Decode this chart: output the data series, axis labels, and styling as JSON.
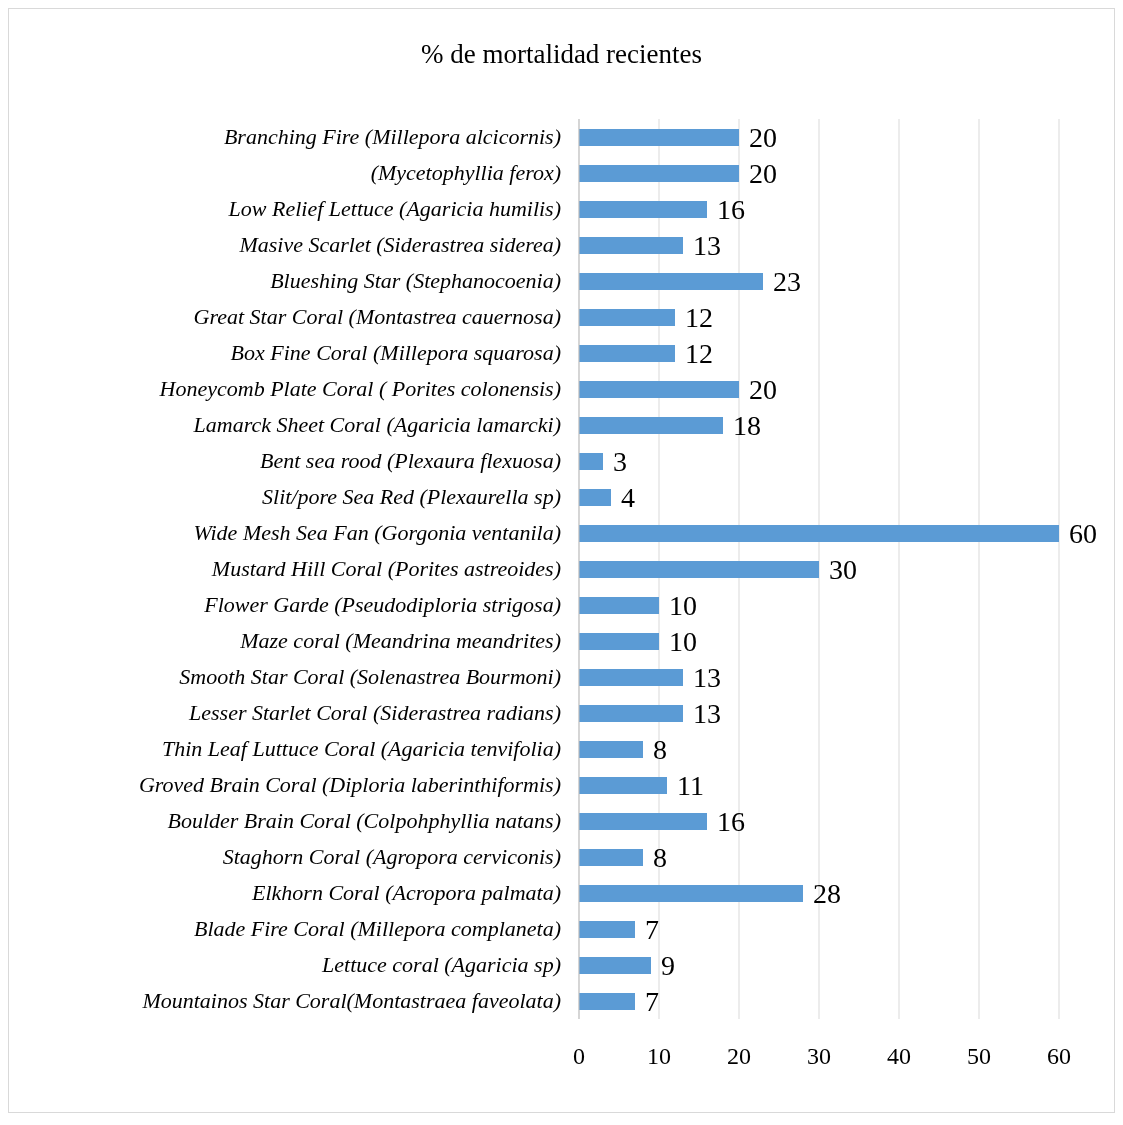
{
  "chart_data": {
    "type": "bar",
    "orientation": "horizontal",
    "title": "% de mortalidad recientes",
    "categories": [
      "Branching Fire (Millepora alcicornis)",
      "(Mycetophyllia ferox)",
      "Low Relief Lettuce (Agaricia humilis)",
      "Masive Scarlet (Siderastrea siderea)",
      "Blueshing Star (Stephanocoenia)",
      "Great Star Coral (Montastrea cauernosa)",
      "Box Fine Coral (Millepora squarosa)",
      "Honeycomb Plate Coral ( Porites colonensis)",
      "Lamarck Sheet Coral (Agaricia lamarcki)",
      "Bent sea rood (Plexaura flexuosa)",
      "Slit/pore Sea Red (Plexaurella sp)",
      "Wide Mesh Sea Fan (Gorgonia ventanila)",
      "Mustard Hill Coral (Porites astreoides)",
      "Flower Garde (Pseudodiploria strigosa)",
      "Maze coral (Meandrina meandrites)",
      "Smooth Star Coral (Solenastrea Bourmoni)",
      "Lesser Starlet Coral (Siderastrea radians)",
      "Thin Leaf Luttuce Coral (Agaricia tenvifolia)",
      "Groved Brain Coral (Diploria laberinthiformis)",
      "Boulder Brain Coral (Colpohphyllia natans)",
      "Staghorn Coral (Agropora cerviconis)",
      "Elkhorn Coral (Acropora palmata)",
      "Blade Fire Coral (Millepora complaneta)",
      "Lettuce coral (Agaricia sp)",
      "Mountainos Star Coral(Montastraea faveolata)"
    ],
    "values": [
      20,
      20,
      16,
      13,
      23,
      12,
      12,
      20,
      18,
      3,
      4,
      60,
      30,
      10,
      10,
      13,
      13,
      8,
      11,
      16,
      8,
      28,
      7,
      9,
      7
    ],
    "color": "#5b9bd5",
    "xlim": [
      0,
      60
    ],
    "xticks": [
      0,
      10,
      20,
      30,
      40,
      50,
      60
    ],
    "grid": "x",
    "data_labels": true
  }
}
